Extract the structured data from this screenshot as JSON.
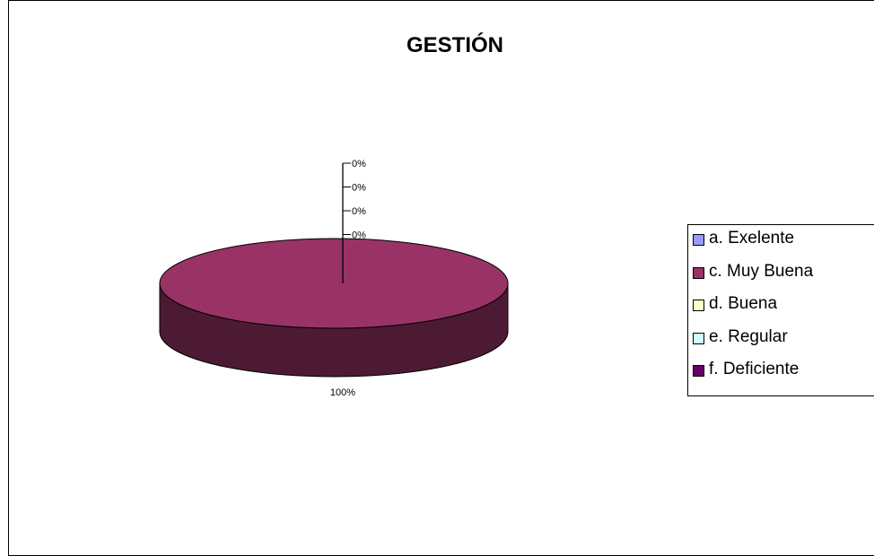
{
  "chart_data": {
    "type": "pie",
    "title": "GESTIÓN",
    "categories": [
      "a. Exelente",
      "c. Muy Buena",
      "d. Buena",
      "e. Regular",
      "f. Deficiente"
    ],
    "values": [
      0,
      100,
      0,
      0,
      0
    ],
    "data_labels": [
      "0%",
      "100%",
      "0%",
      "0%",
      "0%"
    ],
    "colors": [
      "#9999ff",
      "#993366",
      "#ffffcc",
      "#ccffff",
      "#660066"
    ],
    "style": "3d",
    "legend": "right"
  }
}
